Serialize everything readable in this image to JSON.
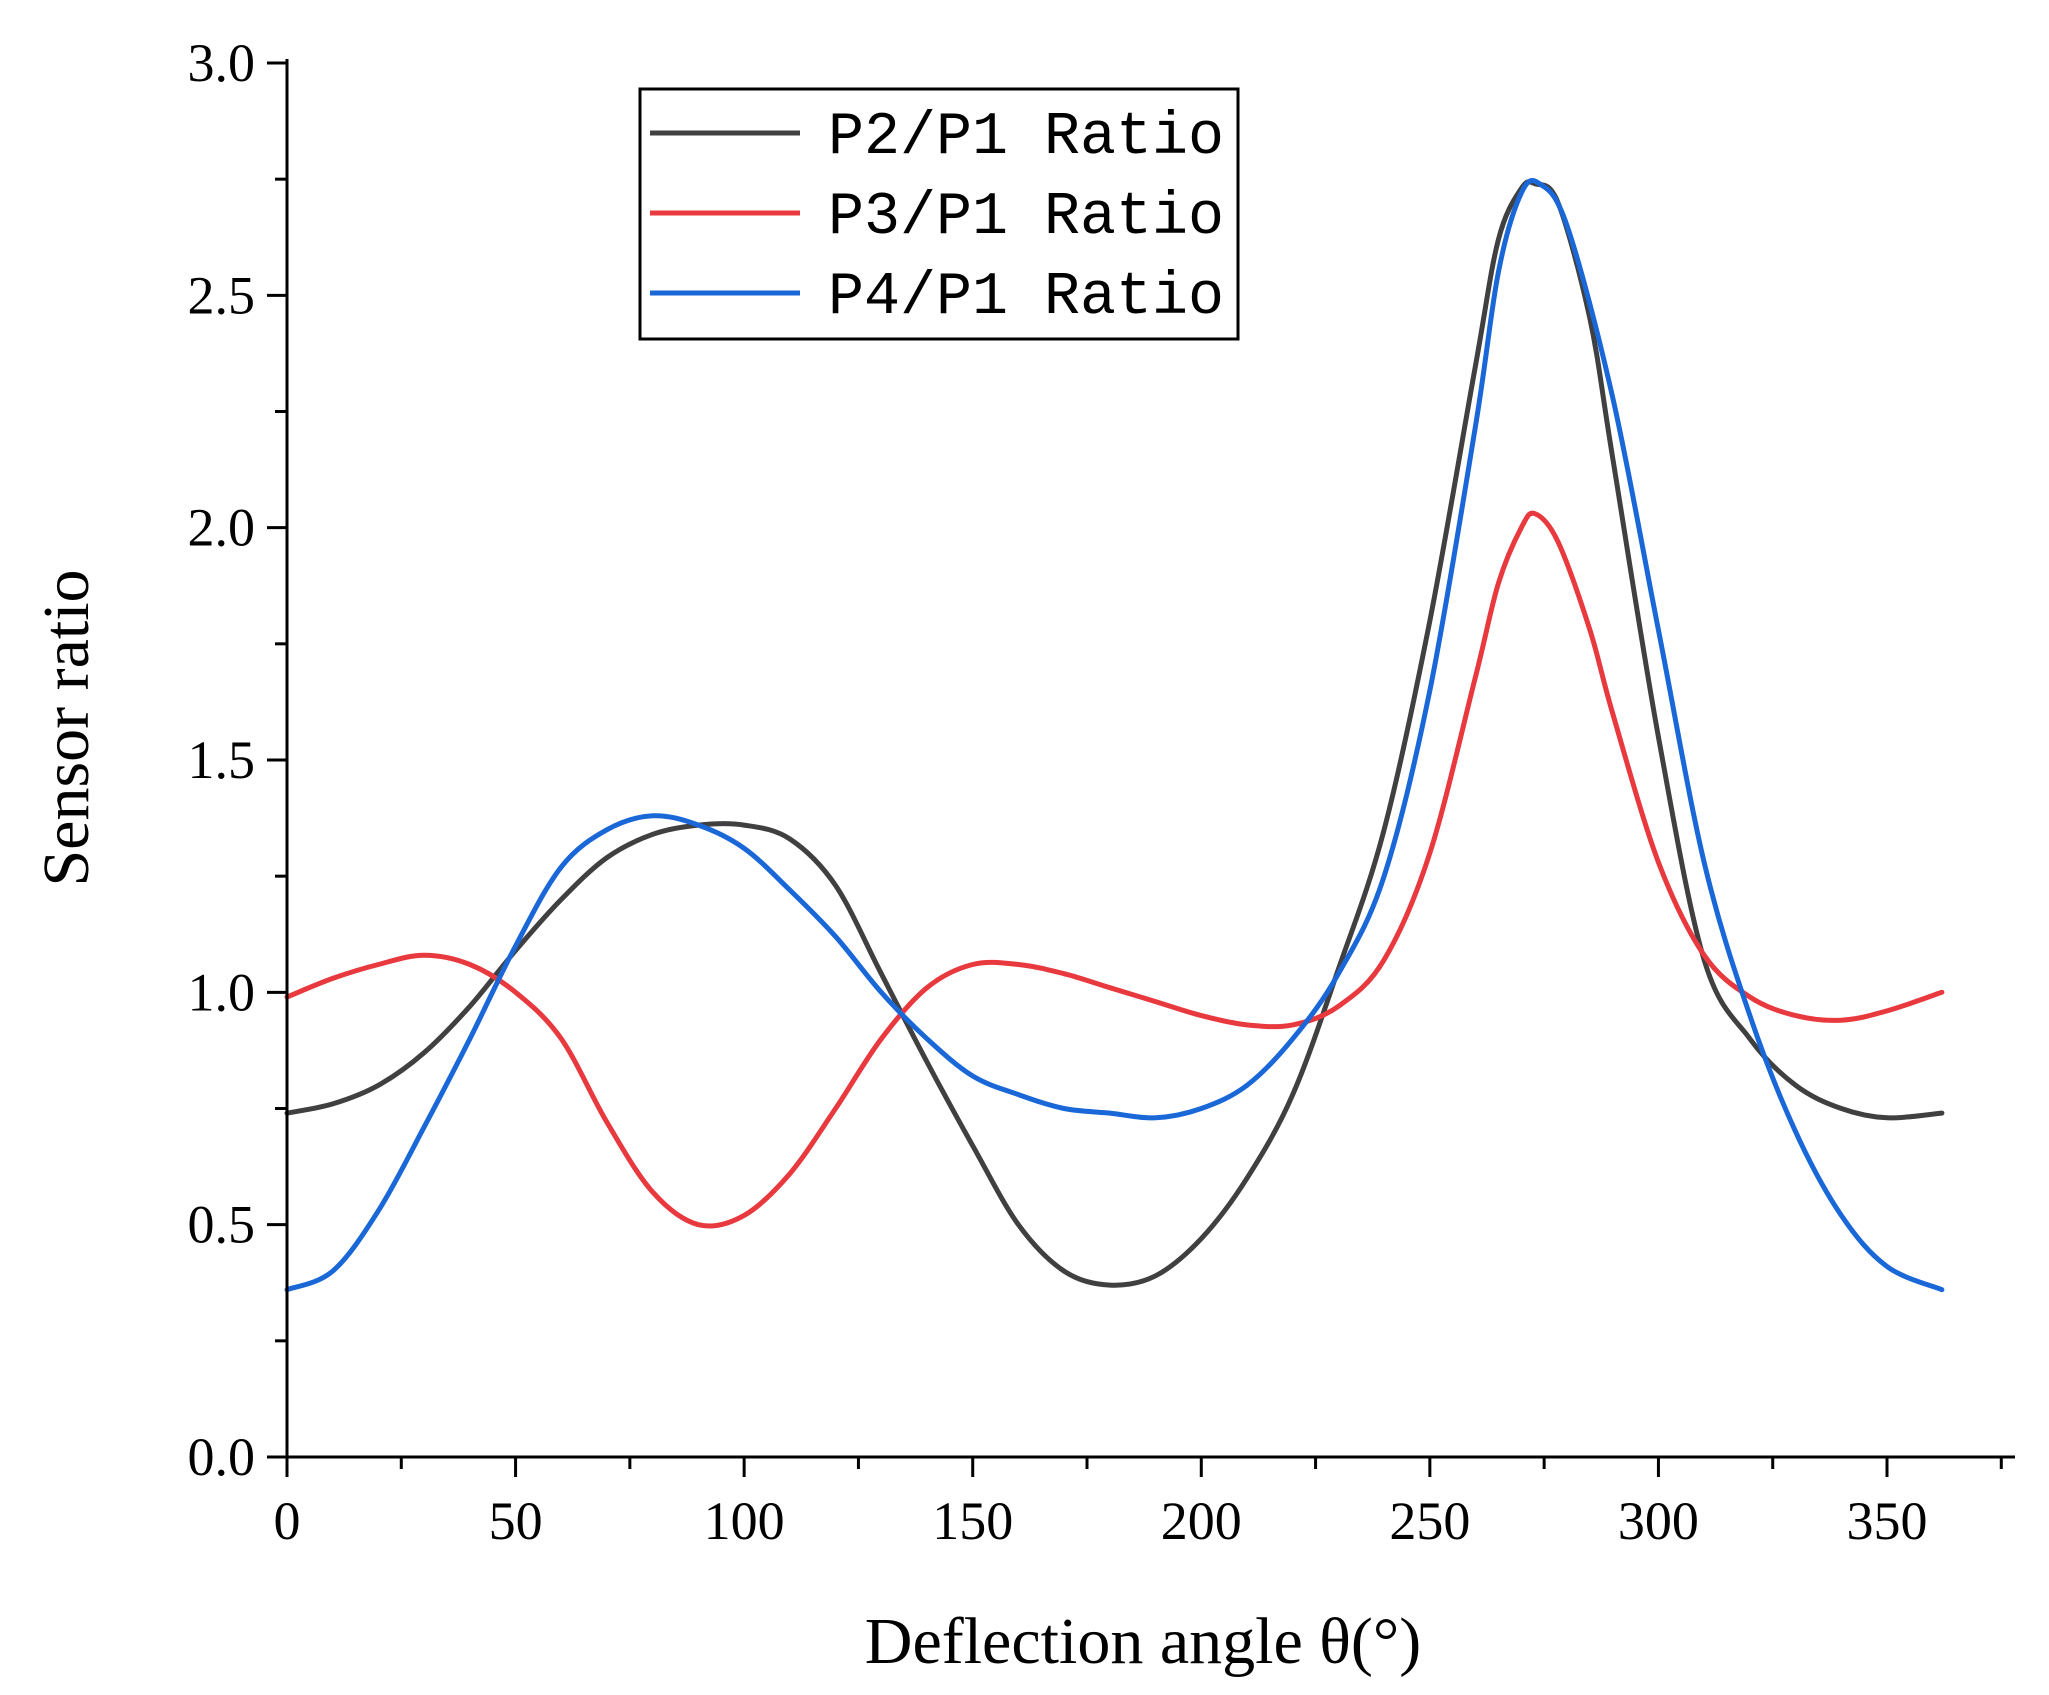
{
  "chart_data": {
    "type": "line",
    "title": "",
    "xlabel": "Deflection angle θ(°)",
    "ylabel": "Sensor ratio",
    "xlim": [
      0,
      378
    ],
    "ylim": [
      0,
      3.0
    ],
    "xticks": [
      0,
      50,
      100,
      150,
      200,
      250,
      300,
      350
    ],
    "yticks": [
      0.0,
      0.5,
      1.0,
      1.5,
      2.0,
      2.5,
      3.0
    ],
    "x_tick_labels": [
      "0",
      "50",
      "100",
      "150",
      "200",
      "250",
      "300",
      "350"
    ],
    "y_tick_labels": [
      "0.0",
      "0.5",
      "1.0",
      "1.5",
      "2.0",
      "2.5",
      "3.0"
    ],
    "grid": false,
    "legend_position": "top-center",
    "series": [
      {
        "name": "P2/P1 Ratio",
        "color": "#404040",
        "x": [
          0,
          10,
          20,
          30,
          40,
          50,
          60,
          70,
          80,
          90,
          100,
          110,
          120,
          130,
          140,
          150,
          160,
          170,
          180,
          190,
          200,
          210,
          220,
          230,
          240,
          250,
          260,
          265,
          270,
          273,
          278,
          285,
          290,
          300,
          310,
          320,
          330,
          340,
          350,
          362
        ],
        "y": [
          0.74,
          0.76,
          0.8,
          0.87,
          0.97,
          1.09,
          1.2,
          1.29,
          1.34,
          1.36,
          1.36,
          1.33,
          1.23,
          1.04,
          0.85,
          0.67,
          0.5,
          0.4,
          0.37,
          0.39,
          0.47,
          0.6,
          0.78,
          1.05,
          1.35,
          1.8,
          2.35,
          2.62,
          2.73,
          2.74,
          2.7,
          2.45,
          2.15,
          1.55,
          1.07,
          0.9,
          0.8,
          0.75,
          0.73,
          0.74
        ]
      },
      {
        "name": "P3/P1 Ratio",
        "color": "#e8393e",
        "x": [
          0,
          10,
          20,
          30,
          40,
          50,
          60,
          70,
          80,
          90,
          100,
          110,
          120,
          130,
          140,
          150,
          160,
          170,
          180,
          190,
          200,
          210,
          220,
          230,
          240,
          250,
          260,
          265,
          270,
          273,
          278,
          285,
          290,
          300,
          310,
          320,
          330,
          340,
          350,
          362
        ],
        "y": [
          0.99,
          1.03,
          1.06,
          1.08,
          1.06,
          1.0,
          0.9,
          0.72,
          0.57,
          0.5,
          0.52,
          0.61,
          0.75,
          0.9,
          1.01,
          1.06,
          1.06,
          1.04,
          1.01,
          0.98,
          0.95,
          0.93,
          0.93,
          0.97,
          1.07,
          1.3,
          1.68,
          1.88,
          2.0,
          2.03,
          1.97,
          1.78,
          1.6,
          1.28,
          1.08,
          0.99,
          0.95,
          0.94,
          0.96,
          1.0
        ]
      },
      {
        "name": "P4/P1 Ratio",
        "color": "#1a67d8",
        "x": [
          0,
          10,
          20,
          30,
          40,
          50,
          60,
          70,
          80,
          90,
          100,
          110,
          120,
          130,
          140,
          150,
          160,
          170,
          180,
          190,
          200,
          210,
          220,
          230,
          240,
          250,
          260,
          265,
          270,
          274,
          280,
          290,
          300,
          310,
          320,
          330,
          340,
          350,
          362
        ],
        "y": [
          0.36,
          0.4,
          0.53,
          0.71,
          0.9,
          1.1,
          1.27,
          1.35,
          1.38,
          1.36,
          1.31,
          1.22,
          1.12,
          1.0,
          0.9,
          0.82,
          0.78,
          0.75,
          0.74,
          0.73,
          0.75,
          0.8,
          0.9,
          1.04,
          1.25,
          1.65,
          2.22,
          2.55,
          2.72,
          2.74,
          2.65,
          2.28,
          1.78,
          1.28,
          0.95,
          0.7,
          0.52,
          0.41,
          0.36
        ]
      }
    ]
  }
}
